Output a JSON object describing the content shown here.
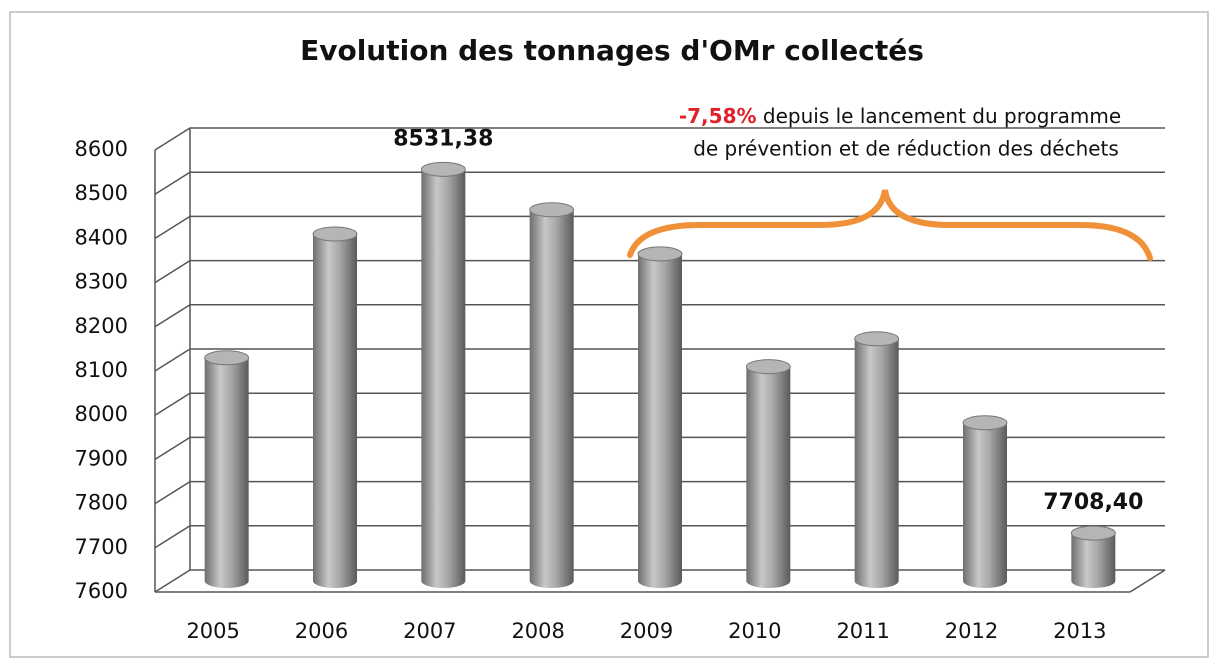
{
  "chart_data": {
    "type": "bar",
    "title": "Evolution des tonnages d'OMr collectés",
    "categories": [
      "2005",
      "2006",
      "2007",
      "2008",
      "2009",
      "2010",
      "2011",
      "2012",
      "2013"
    ],
    "values": [
      8105,
      8385,
      8531.38,
      8440,
      8340,
      8085,
      8148,
      7958,
      7708.4
    ],
    "value_labels": [
      null,
      null,
      "8531,38",
      null,
      null,
      null,
      null,
      null,
      "7708,40"
    ],
    "color": "#9a9a9a",
    "ylim": [
      7600,
      8600
    ],
    "yticks": [
      7600,
      7700,
      7800,
      7900,
      8000,
      8100,
      8200,
      8300,
      8400,
      8500,
      8600
    ],
    "grid": true,
    "annotation": {
      "highlight": "-7,58%",
      "lines": [
        " depuis le lancement du programme",
        "de prévention et de réduction des déchets"
      ]
    }
  }
}
